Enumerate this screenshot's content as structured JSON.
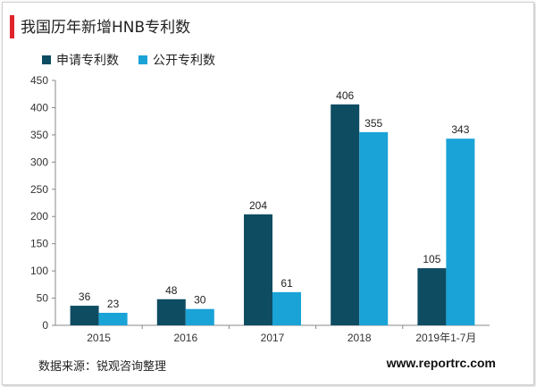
{
  "header": {
    "title": "我国历年新增HNB专利数"
  },
  "source": "数据来源：锐观咨询整理",
  "site": "www.reportrc.com",
  "colors": {
    "accent": "#e0242b",
    "series1": "#0e4c62",
    "series2": "#1aa3d7"
  },
  "chart_data": {
    "type": "bar",
    "categories": [
      "2015",
      "2016",
      "2017",
      "2018",
      "2019年1-7月"
    ],
    "series": [
      {
        "name": "申请专利数",
        "values": [
          36,
          48,
          204,
          406,
          105
        ]
      },
      {
        "name": "公开专利数",
        "values": [
          23,
          30,
          61,
          355,
          343
        ]
      }
    ],
    "ylim": [
      0,
      450
    ],
    "yticks": [
      "0",
      "50",
      "100",
      "150",
      "200",
      "250",
      "300",
      "350",
      "400",
      "450"
    ],
    "legend": "top-left",
    "grid": false
  }
}
